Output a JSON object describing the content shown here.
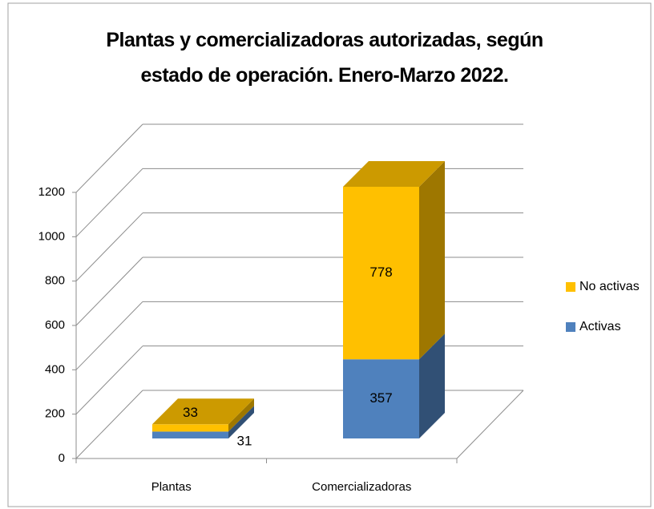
{
  "chart_data": {
    "type": "bar3d_stacked",
    "title": "Plantas y comercializadoras autorizadas, según estado de operación. Enero-Marzo 2022.",
    "categories": [
      "Plantas",
      "Comercializadoras"
    ],
    "series": [
      {
        "name": "Activas",
        "color": "#4f81bd",
        "values": [
          31,
          357
        ]
      },
      {
        "name": "No activas",
        "color": "#ffc000",
        "values": [
          33,
          778
        ]
      }
    ],
    "ylim": [
      0,
      1200
    ],
    "yticks": [
      0,
      200,
      400,
      600,
      800,
      1000,
      1200
    ],
    "grid": true,
    "legend": "right"
  }
}
